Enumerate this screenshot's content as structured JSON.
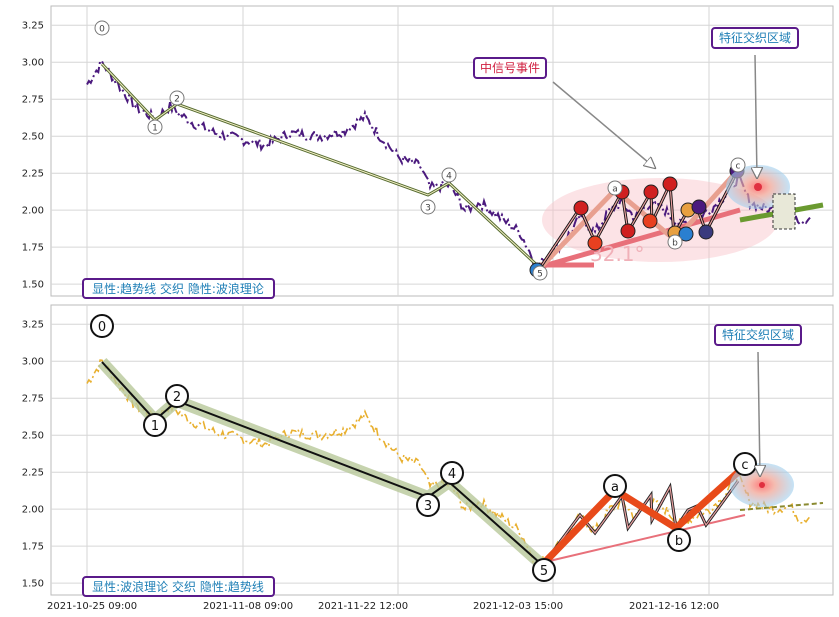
{
  "chart_data": [
    {
      "type": "line",
      "panel": "top",
      "ylim": [
        1.42,
        3.38
      ],
      "yticks": [
        "3.25",
        "3.00",
        "2.75",
        "2.50",
        "2.25",
        "2.00",
        "1.75",
        "1.50"
      ],
      "grid": true,
      "panel_label": "显性:趋势线 交织 隐性:波浪理论",
      "callouts": [
        "中信号事件",
        "特征交织区域"
      ],
      "angle_label": "32.1°",
      "wave_labels": [
        "0",
        "1",
        "2",
        "3",
        "4",
        "5"
      ],
      "subwave_labels": [
        "a",
        "b",
        "c"
      ],
      "colors": {
        "price": "#4b1a7e",
        "trend": "#556b2f",
        "wave": "#e8707a",
        "box": "#5a1a8a"
      }
    },
    {
      "type": "line",
      "panel": "bottom",
      "ylim": [
        1.42,
        3.38
      ],
      "yticks": [
        "3.25",
        "3.00",
        "2.75",
        "2.50",
        "2.25",
        "2.00",
        "1.75",
        "1.50"
      ],
      "grid": true,
      "panel_label": "显性:波浪理论 交织 隐性:趋势线",
      "callouts": [
        "特征交织区域"
      ],
      "wave_labels": [
        "0",
        "1",
        "2",
        "3",
        "4",
        "5"
      ],
      "subwave_labels": [
        "a",
        "b",
        "c"
      ],
      "xticks": [
        "2021-10-25 09:00",
        "2021-11-08 09:00",
        "2021-11-22 12:00",
        "2021-12-03 15:00",
        "2021-12-16 12:00"
      ],
      "colors": {
        "price": "#e8b030",
        "trend": "#8aa060",
        "wave": "#e84a1a",
        "box": "#5a1a8a"
      }
    }
  ]
}
